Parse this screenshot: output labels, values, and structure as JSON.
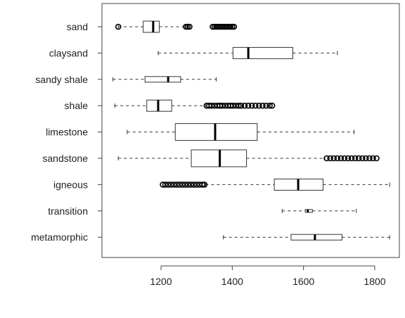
{
  "chart_data": {
    "type": "boxplot",
    "orientation": "horizontal",
    "title": "",
    "xlabel": "",
    "ylabel": "",
    "xlim": [
      1060,
      1850
    ],
    "x_ticks": [
      1200,
      1400,
      1600,
      1800
    ],
    "x_tick_labels": [
      "1200",
      "1400",
      "1600",
      "1800"
    ],
    "grid": false,
    "categories": [
      "sand",
      "claysand",
      "sandy shale",
      "shale",
      "limestone",
      "sandstone",
      "igneous",
      "transition",
      "metamorphic"
    ],
    "boxes": [
      {
        "category": "sand",
        "whisker_low": 1080,
        "q1": 1150,
        "median": 1178,
        "q3": 1195,
        "whisker_high": 1265,
        "outliers": [
          1080,
          1270,
          1275,
          1280,
          1345,
          1350,
          1355,
          1360,
          1365,
          1370,
          1375,
          1380,
          1385,
          1390,
          1395,
          1400,
          1405
        ]
      },
      {
        "category": "claysand",
        "whisker_low": 1192,
        "q1": 1402,
        "median": 1445,
        "q3": 1570,
        "whisker_high": 1695,
        "outliers": []
      },
      {
        "category": "sandy shale",
        "whisker_low": 1065,
        "q1": 1155,
        "median": 1220,
        "q3": 1255,
        "whisker_high": 1355,
        "outliers": []
      },
      {
        "category": "shale",
        "whisker_low": 1070,
        "q1": 1160,
        "median": 1192,
        "q3": 1230,
        "whisker_high": 1325,
        "outliers": [
          1328,
          1335,
          1342,
          1350,
          1358,
          1365,
          1372,
          1380,
          1388,
          1395,
          1402,
          1410,
          1418,
          1425,
          1435,
          1445,
          1455,
          1465,
          1475,
          1485,
          1495,
          1505,
          1512
        ]
      },
      {
        "category": "limestone",
        "whisker_low": 1105,
        "q1": 1240,
        "median": 1352,
        "q3": 1470,
        "whisker_high": 1742,
        "outliers": []
      },
      {
        "category": "sandstone",
        "whisker_low": 1080,
        "q1": 1285,
        "median": 1365,
        "q3": 1440,
        "whisker_high": 1660,
        "outliers": [
          1665,
          1675,
          1685,
          1695,
          1705,
          1715,
          1725,
          1735,
          1745,
          1755,
          1765,
          1775,
          1785,
          1795,
          1805
        ]
      },
      {
        "category": "igneous",
        "whisker_low": 1325,
        "q1": 1518,
        "median": 1585,
        "q3": 1655,
        "whisker_high": 1842,
        "outliers": [
          1205,
          1212,
          1220,
          1228,
          1236,
          1244,
          1252,
          1260,
          1268,
          1276,
          1284,
          1292,
          1300,
          1308,
          1316,
          1322
        ]
      },
      {
        "category": "transition",
        "whisker_low": 1540,
        "q1": 1605,
        "median": 1612,
        "q3": 1625,
        "whisker_high": 1748,
        "outliers": []
      },
      {
        "category": "metamorphic",
        "whisker_low": 1375,
        "q1": 1565,
        "median": 1632,
        "q3": 1708,
        "whisker_high": 1842,
        "outliers": []
      }
    ],
    "box_heights": [
      1,
      1,
      0.5,
      1,
      1.5,
      1.5,
      1,
      0.25,
      0.5
    ]
  }
}
